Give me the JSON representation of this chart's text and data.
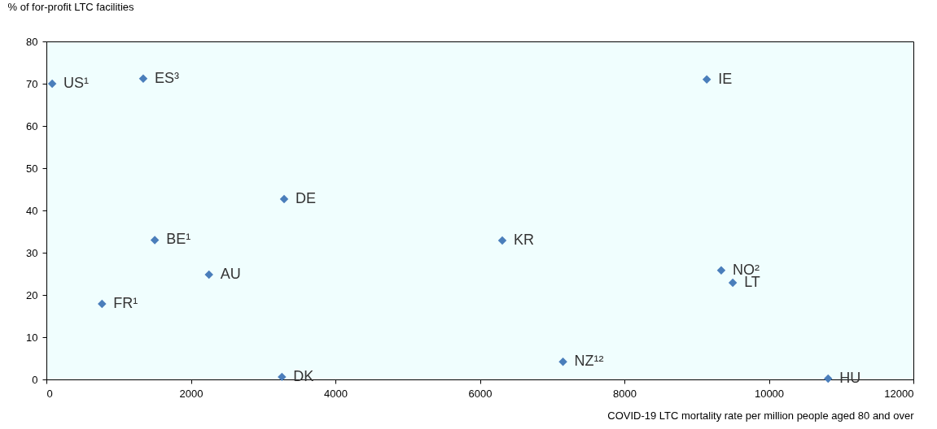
{
  "chart_data": {
    "type": "scatter",
    "xlabel": "COVID-19 LTC mortality rate per million people aged 80 and over",
    "ylabel": "% of for-profit LTC facilities",
    "x": [
      80,
      1340,
      9140,
      3290,
      6310,
      1500,
      2250,
      9340,
      9500,
      770,
      7150,
      3260,
      10820
    ],
    "series": [
      {
        "color": "#4a7ebb",
        "values": [
          70,
          71.2,
          71,
          42.7,
          32.9,
          33,
          24.8,
          25.8,
          22.9,
          17.9,
          4.2,
          0.6,
          0.2
        ]
      }
    ],
    "annotations": [
      {
        "text": "US¹",
        "x": 80,
        "y": 70
      },
      {
        "text": "ES³",
        "x": 1340,
        "y": 71.2
      },
      {
        "text": "IE",
        "x": 9140,
        "y": 71
      },
      {
        "text": "DE",
        "x": 3290,
        "y": 42.7
      },
      {
        "text": "KR",
        "x": 6310,
        "y": 32.9
      },
      {
        "text": "BE¹",
        "x": 1500,
        "y": 33
      },
      {
        "text": "AU",
        "x": 2250,
        "y": 24.8
      },
      {
        "text": "NO²",
        "x": 9340,
        "y": 25.8
      },
      {
        "text": "LT",
        "x": 9500,
        "y": 22.9
      },
      {
        "text": "FR¹",
        "x": 770,
        "y": 17.9
      },
      {
        "text": "NZ¹²",
        "x": 7150,
        "y": 4.2
      },
      {
        "text": "DK",
        "x": 3260,
        "y": 0.6
      },
      {
        "text": "HU",
        "x": 10820,
        "y": 0.2
      }
    ],
    "xlim": [
      0,
      12000
    ],
    "xticks": [
      0,
      2000,
      4000,
      6000,
      8000,
      10000,
      12000
    ],
    "ylim": [
      0,
      80
    ],
    "yticks": [
      0,
      10,
      20,
      30,
      40,
      50,
      60,
      70,
      80
    ],
    "marker": "diamond",
    "grid": false
  }
}
